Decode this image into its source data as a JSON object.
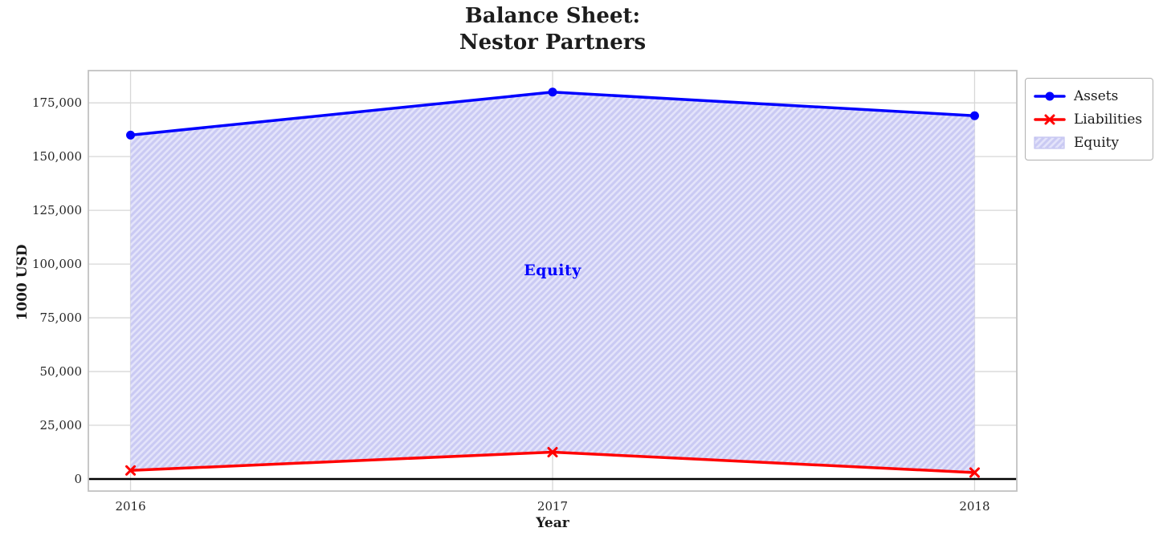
{
  "title_lines": {
    "line1": "Balance Sheet:",
    "line2": "Nestor Partners"
  },
  "chart_data": {
    "type": "area",
    "title": "Balance Sheet:\nNestor Partners",
    "xlabel": "Year",
    "ylabel": "1000 USD",
    "x": [
      2016,
      2017,
      2018
    ],
    "series": [
      {
        "name": "Assets",
        "color": "#0000ff",
        "marker": "circle",
        "line_width": 3.5,
        "values": [
          160000,
          180000,
          169000
        ]
      },
      {
        "name": "Liabilities",
        "color": "#ff0000",
        "marker": "x",
        "line_width": 3.5,
        "values": [
          4000,
          12500,
          3000
        ]
      }
    ],
    "area_between": {
      "name": "Equity",
      "upper": "Assets",
      "lower": "Liabilities",
      "fill_color": "#e3e3fa",
      "hatch": "/",
      "hatch_color": "#cacaf3",
      "annotation": {
        "text": "Equity",
        "color": "#0000ff",
        "x": 2017,
        "y": 97000
      }
    },
    "xlim": [
      2015.9,
      2018.1
    ],
    "ylim": [
      -5600,
      190000
    ],
    "xticks": [
      {
        "value": 2016,
        "label": "2016"
      },
      {
        "value": 2017,
        "label": "2017"
      },
      {
        "value": 2018,
        "label": "2018"
      }
    ],
    "yticks": [
      {
        "value": 0,
        "label": "0"
      },
      {
        "value": 25000,
        "label": "25,000"
      },
      {
        "value": 50000,
        "label": "50,000"
      },
      {
        "value": 75000,
        "label": "75,000"
      },
      {
        "value": 100000,
        "label": "100,000"
      },
      {
        "value": 125000,
        "label": "125,000"
      },
      {
        "value": 150000,
        "label": "150,000"
      },
      {
        "value": 175000,
        "label": "175,000"
      }
    ],
    "grid": true,
    "zero_line": {
      "color": "#000000",
      "width": 2.5
    },
    "legend": {
      "position": "outside-top-right",
      "items": [
        {
          "label": "Assets",
          "type": "line",
          "marker": "circle",
          "color": "#0000ff"
        },
        {
          "label": "Liabilities",
          "type": "line",
          "marker": "x",
          "color": "#ff0000"
        },
        {
          "label": "Equity",
          "type": "patch",
          "fill_color": "#e3e3fa",
          "hatch_color": "#cacaf3"
        }
      ]
    },
    "colors": {
      "grid": "#d7d7d7",
      "spine": "#c2c2c2",
      "text": "#262626"
    }
  }
}
